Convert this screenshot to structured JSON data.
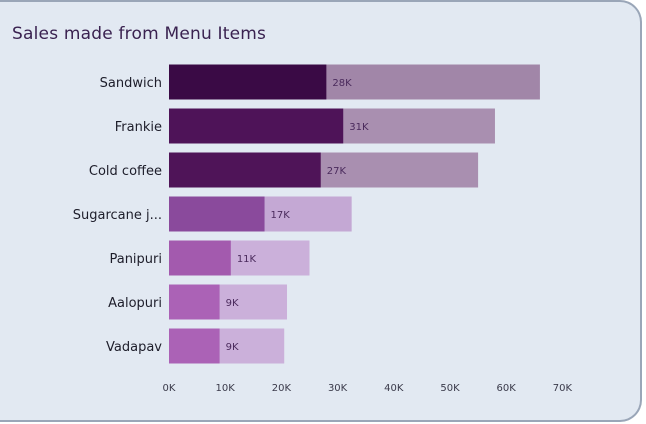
{
  "chart_data": {
    "type": "bar",
    "title": "Sales made from Menu Items",
    "categories": [
      "Sandwich",
      "Frankie",
      "Cold coffee",
      "Sugarcane j...",
      "Panipuri",
      "Aalopuri",
      "Vadapav"
    ],
    "series": [
      {
        "values": [
          28000,
          31000,
          27000,
          17000,
          11000,
          9000,
          9000
        ],
        "value_labels": [
          "28K",
          "31K",
          "27K",
          "17K",
          "11K",
          "9K",
          "9K"
        ]
      },
      {
        "values": [
          66000,
          58000,
          55000,
          32500,
          25000,
          21000,
          20500
        ]
      }
    ],
    "xlim": [
      0,
      70000
    ],
    "xticks": [
      0,
      10000,
      20000,
      30000,
      40000,
      50000,
      60000,
      70000
    ],
    "xtick_labels": [
      "0K",
      "10K",
      "20K",
      "30K",
      "40K",
      "50K",
      "60K",
      "70K"
    ],
    "orientation": "horizontal",
    "grid": false,
    "colors": {
      "dark": [
        "#3a0a45",
        "#4e1358",
        "#4f1458",
        "#8a4a9c",
        "#a35aae",
        "#ab62b6",
        "#ab62b6"
      ],
      "light": [
        "#a186a8",
        "#a98fb0",
        "#a98fb0",
        "#c4a8d4",
        "#cbb0da",
        "#cbb0da",
        "#cbb0da"
      ]
    }
  }
}
